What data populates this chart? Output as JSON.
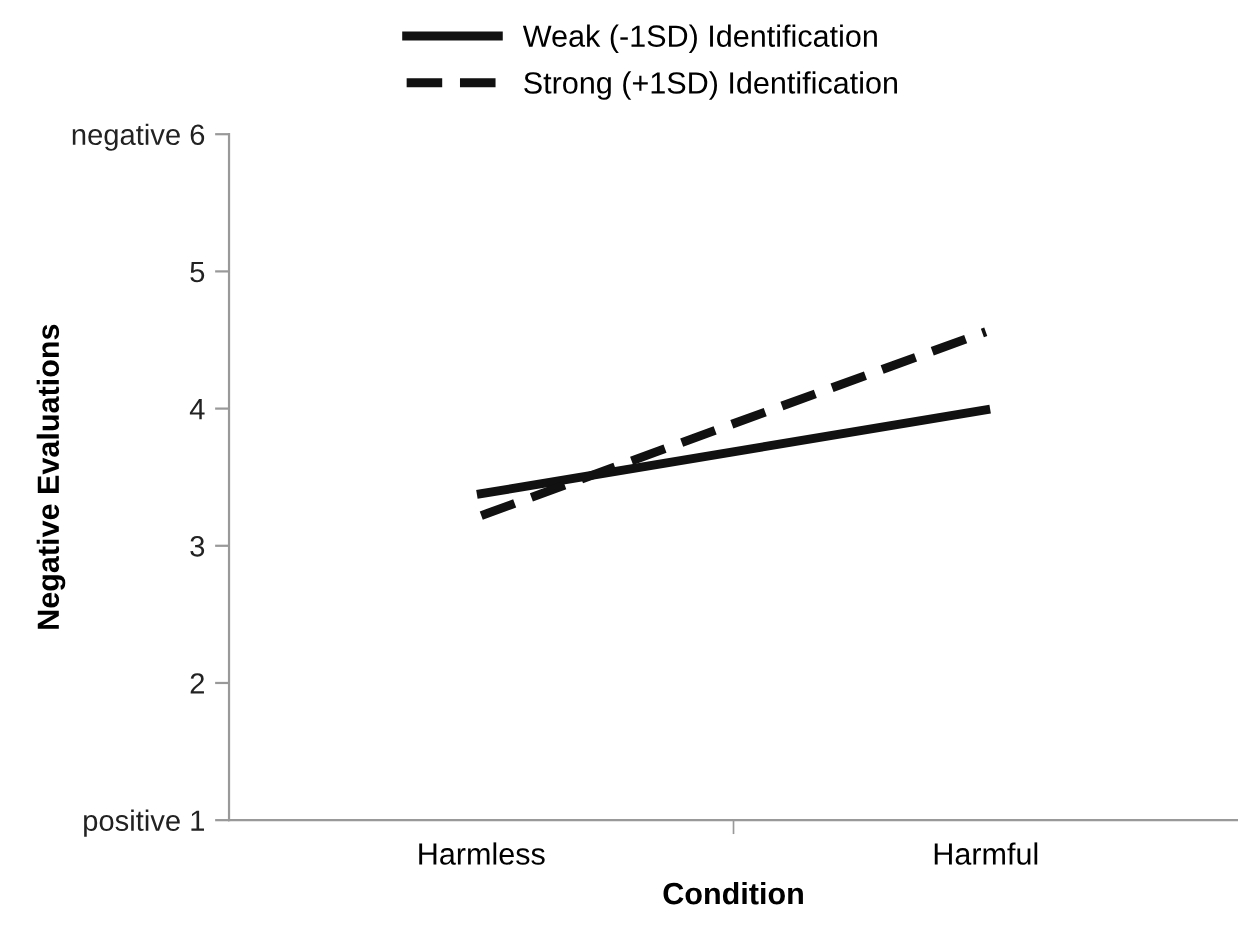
{
  "chart_data": {
    "type": "line",
    "xlabel": "Condition",
    "ylabel": "Negative Evaluations",
    "categories": [
      "Harmless",
      "Harmful"
    ],
    "series": [
      {
        "name": "Weak (-1SD) Identification",
        "color": "#111111",
        "values": [
          3.38,
          3.99
        ],
        "line_style": "solid"
      },
      {
        "name": "Strong (+1SD) Identification",
        "color": "#111111",
        "values": [
          3.22,
          4.56
        ],
        "line_style": "dashed"
      }
    ],
    "ylim": [
      1,
      6
    ],
    "yticks": [
      {
        "value": 1,
        "label": "positive 1"
      },
      2,
      3,
      4,
      5,
      {
        "value": 6,
        "label": "negative 6"
      }
    ],
    "grid": false,
    "legend": "top",
    "marker": "none"
  }
}
